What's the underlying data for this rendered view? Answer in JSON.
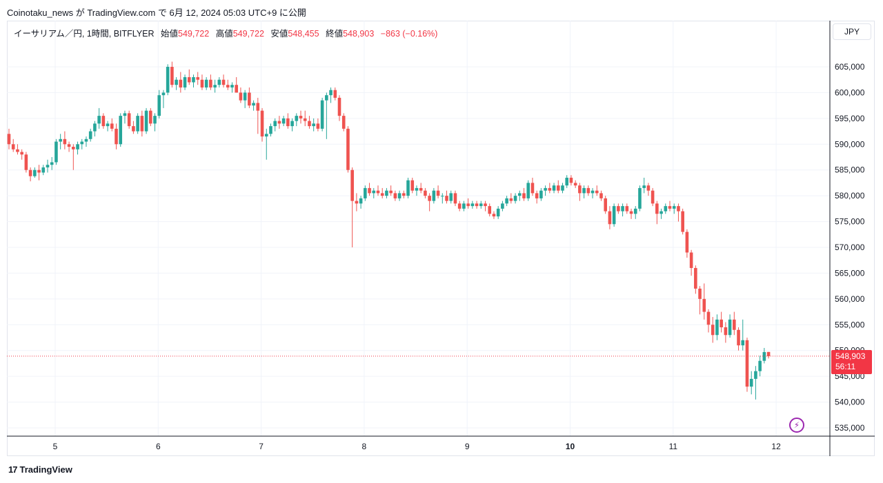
{
  "header": {
    "publish_line": "Coinotaku_news が TradingView.com で 6月 12, 2024 05:03 UTC+9 に公開"
  },
  "legend": {
    "symbol": "イーサリアム／円, 1時間, BITFLYER",
    "open_label": "始値",
    "open_value": "549,722",
    "high_label": "高値",
    "high_value": "549,722",
    "low_label": "安値",
    "low_value": "548,455",
    "close_label": "終値",
    "close_value": "548,903",
    "change": "−863 (−0.16%)"
  },
  "currency_button": "JPY",
  "price_tag": {
    "price": "548,903",
    "countdown": "56:11"
  },
  "footer": {
    "brand": "TradingView"
  },
  "colors": {
    "up": "#26a69a",
    "down": "#ef5350",
    "grid": "#f0f3fa",
    "axis_text": "#131722"
  },
  "chart_data": {
    "type": "candlestick",
    "x_ticks": [
      "5",
      "6",
      "7",
      "8",
      "9",
      "10",
      "11",
      "12"
    ],
    "y_ticks": [
      "605,000",
      "600,000",
      "595,000",
      "590,000",
      "585,000",
      "580,000",
      "575,000",
      "570,000",
      "565,000",
      "560,000",
      "555,000",
      "550,000",
      "545,000",
      "540,000",
      "535,000"
    ],
    "ylim": [
      533000,
      609000
    ],
    "last_price": 548903,
    "x_start_day": 4.62,
    "bars_per_day": 24,
    "candles": [
      [
        592000,
        593000,
        589000,
        590000
      ],
      [
        590000,
        591000,
        588500,
        589000
      ],
      [
        589000,
        590000,
        588000,
        588500
      ],
      [
        588500,
        589000,
        587000,
        588000
      ],
      [
        588000,
        588500,
        584500,
        585000
      ],
      [
        585000,
        585500,
        582800,
        583800
      ],
      [
        583800,
        585500,
        583500,
        585000
      ],
      [
        585000,
        586000,
        583000,
        584500
      ],
      [
        584500,
        586000,
        584000,
        585500
      ],
      [
        585500,
        587000,
        584500,
        586000
      ],
      [
        586000,
        587500,
        585000,
        586500
      ],
      [
        586500,
        591000,
        586000,
        590500
      ],
      [
        590500,
        592000,
        589000,
        591000
      ],
      [
        591000,
        592500,
        589000,
        590000
      ],
      [
        590000,
        590500,
        588500,
        589500
      ],
      [
        589500,
        590000,
        585000,
        589000
      ],
      [
        589000,
        590500,
        588000,
        590000
      ],
      [
        590000,
        591000,
        589000,
        590500
      ],
      [
        590500,
        591500,
        589500,
        591000
      ],
      [
        591000,
        593000,
        590500,
        592500
      ],
      [
        592500,
        594500,
        591500,
        594000
      ],
      [
        594000,
        597000,
        593000,
        595500
      ],
      [
        595500,
        596000,
        593000,
        593500
      ],
      [
        593500,
        594500,
        592500,
        594000
      ],
      [
        594000,
        595000,
        592500,
        593000
      ],
      [
        593000,
        594000,
        589000,
        590000
      ],
      [
        590000,
        596000,
        589500,
        595500
      ],
      [
        595500,
        596500,
        594000,
        596000
      ],
      [
        596000,
        596500,
        593000,
        593500
      ],
      [
        593500,
        594500,
        592000,
        592500
      ],
      [
        592500,
        596000,
        592000,
        595500
      ],
      [
        595500,
        596500,
        591500,
        592500
      ],
      [
        592500,
        597000,
        592000,
        596500
      ],
      [
        596500,
        597000,
        593500,
        594000
      ],
      [
        594000,
        596000,
        592500,
        595500
      ],
      [
        595500,
        600500,
        595000,
        599500
      ],
      [
        599500,
        600500,
        597000,
        600000
      ],
      [
        600000,
        605500,
        599500,
        605000
      ],
      [
        605000,
        606000,
        601000,
        601500
      ],
      [
        601500,
        603000,
        600500,
        602500
      ],
      [
        602500,
        604000,
        600000,
        601000
      ],
      [
        601000,
        603500,
        600500,
        603000
      ],
      [
        603000,
        604500,
        601500,
        602000
      ],
      [
        602000,
        603500,
        601000,
        603000
      ],
      [
        603000,
        604000,
        601500,
        602500
      ],
      [
        602500,
        603500,
        600500,
        601000
      ],
      [
        601000,
        603000,
        600500,
        602500
      ],
      [
        602500,
        603500,
        600500,
        601000
      ],
      [
        601000,
        602500,
        600000,
        601500
      ],
      [
        601500,
        603000,
        601000,
        602500
      ],
      [
        602500,
        603500,
        601000,
        601500
      ],
      [
        601500,
        602500,
        600500,
        601000
      ],
      [
        601000,
        602000,
        600000,
        601500
      ],
      [
        601500,
        603000,
        600000,
        600000
      ],
      [
        600000,
        601000,
        598000,
        598500
      ],
      [
        598500,
        600500,
        597000,
        600000
      ],
      [
        600000,
        601000,
        597000,
        597500
      ],
      [
        597500,
        598500,
        596500,
        598000
      ],
      [
        598000,
        599000,
        592000,
        596500
      ],
      [
        596500,
        597000,
        590500,
        591500
      ],
      [
        591500,
        593000,
        587000,
        592000
      ],
      [
        592000,
        594000,
        591500,
        593500
      ],
      [
        593500,
        595000,
        592500,
        594500
      ],
      [
        594500,
        595500,
        593000,
        594000
      ],
      [
        594000,
        595500,
        593500,
        595000
      ],
      [
        595000,
        596000,
        593000,
        593500
      ],
      [
        593500,
        595000,
        592500,
        594500
      ],
      [
        594500,
        596000,
        593500,
        595500
      ],
      [
        595500,
        596500,
        594000,
        595000
      ],
      [
        595000,
        596500,
        593500,
        594500
      ],
      [
        594500,
        595500,
        593000,
        593500
      ],
      [
        593500,
        595000,
        592500,
        594000
      ],
      [
        594000,
        595000,
        592500,
        593000
      ],
      [
        593000,
        599000,
        592500,
        598500
      ],
      [
        598500,
        600000,
        591000,
        599500
      ],
      [
        599500,
        601000,
        598000,
        600500
      ],
      [
        600500,
        601000,
        598500,
        599000
      ],
      [
        599000,
        599500,
        594500,
        595500
      ],
      [
        595500,
        596000,
        592500,
        593000
      ],
      [
        593000,
        593500,
        584500,
        585000
      ],
      [
        585000,
        585500,
        570000,
        579000
      ],
      [
        579000,
        580500,
        577000,
        578500
      ],
      [
        578500,
        580000,
        577500,
        579500
      ],
      [
        579500,
        582000,
        579000,
        581500
      ],
      [
        581500,
        582500,
        580000,
        580500
      ],
      [
        580500,
        581500,
        579500,
        581000
      ],
      [
        581000,
        582000,
        580000,
        580500
      ],
      [
        580500,
        581500,
        579500,
        580000
      ],
      [
        580000,
        581500,
        579500,
        581000
      ],
      [
        581000,
        582000,
        580000,
        580500
      ],
      [
        580500,
        581000,
        579000,
        579500
      ],
      [
        579500,
        581000,
        579000,
        580500
      ],
      [
        580500,
        581000,
        579500,
        580000
      ],
      [
        580000,
        583500,
        579500,
        583000
      ],
      [
        583000,
        583500,
        580500,
        581000
      ],
      [
        581000,
        582000,
        580000,
        581500
      ],
      [
        581500,
        582500,
        580500,
        581000
      ],
      [
        581000,
        581500,
        579500,
        580000
      ],
      [
        580000,
        580500,
        577000,
        579000
      ],
      [
        579000,
        581500,
        578500,
        581000
      ],
      [
        581000,
        582000,
        579500,
        580000
      ],
      [
        580000,
        580500,
        578500,
        580000
      ],
      [
        580000,
        581000,
        578500,
        579000
      ],
      [
        579000,
        581000,
        578500,
        580500
      ],
      [
        580500,
        581000,
        578000,
        578500
      ],
      [
        578500,
        579000,
        577000,
        577500
      ],
      [
        577500,
        579000,
        577000,
        578500
      ],
      [
        578500,
        579500,
        577500,
        578000
      ],
      [
        578000,
        579000,
        577500,
        578500
      ],
      [
        578500,
        579000,
        577500,
        578000
      ],
      [
        578000,
        579000,
        577500,
        578500
      ],
      [
        578500,
        579000,
        577000,
        578000
      ],
      [
        578000,
        578500,
        576000,
        576500
      ],
      [
        576500,
        577000,
        575500,
        576000
      ],
      [
        576000,
        578000,
        575500,
        577500
      ],
      [
        577500,
        579000,
        577000,
        578500
      ],
      [
        578500,
        580000,
        578000,
        579500
      ],
      [
        579500,
        580500,
        578500,
        579000
      ],
      [
        579000,
        580500,
        578500,
        580000
      ],
      [
        580000,
        581000,
        579000,
        580500
      ],
      [
        580500,
        581500,
        579000,
        579500
      ],
      [
        579500,
        583000,
        579000,
        582500
      ],
      [
        582500,
        583500,
        580000,
        580500
      ],
      [
        580500,
        581000,
        578500,
        579500
      ],
      [
        579500,
        581500,
        579000,
        581000
      ],
      [
        581000,
        582000,
        580000,
        581500
      ],
      [
        581500,
        582500,
        580500,
        581000
      ],
      [
        581000,
        582500,
        580500,
        582000
      ],
      [
        582000,
        583000,
        580500,
        581000
      ],
      [
        581000,
        582500,
        580500,
        582000
      ],
      [
        582000,
        584000,
        581500,
        583500
      ],
      [
        583500,
        584000,
        582000,
        582500
      ],
      [
        582500,
        583000,
        581500,
        582000
      ],
      [
        582000,
        582500,
        579000,
        580500
      ],
      [
        580500,
        582000,
        579500,
        581500
      ],
      [
        581500,
        582000,
        580000,
        580500
      ],
      [
        580500,
        581500,
        579500,
        581000
      ],
      [
        581000,
        582000,
        580000,
        580500
      ],
      [
        580500,
        581000,
        579000,
        579500
      ],
      [
        579500,
        580000,
        576500,
        577000
      ],
      [
        577000,
        578000,
        573500,
        574500
      ],
      [
        574500,
        578500,
        574000,
        578000
      ],
      [
        578000,
        578500,
        576500,
        577000
      ],
      [
        577000,
        578500,
        576000,
        578000
      ],
      [
        578000,
        578500,
        576500,
        577000
      ],
      [
        577000,
        577500,
        575500,
        576500
      ],
      [
        576500,
        578000,
        575500,
        577500
      ],
      [
        577500,
        582000,
        577000,
        581500
      ],
      [
        581500,
        583500,
        580500,
        582000
      ],
      [
        582000,
        582500,
        580000,
        581000
      ],
      [
        581000,
        581500,
        578000,
        578500
      ],
      [
        578500,
        579000,
        574500,
        576500
      ],
      [
        576500,
        577500,
        575500,
        577000
      ],
      [
        577000,
        578500,
        576500,
        578000
      ],
      [
        578000,
        579000,
        577000,
        577500
      ],
      [
        577500,
        578500,
        576500,
        578000
      ],
      [
        578000,
        578500,
        575000,
        577000
      ],
      [
        577000,
        577500,
        572500,
        573000
      ],
      [
        573000,
        573500,
        568000,
        569000
      ],
      [
        569000,
        569500,
        564500,
        566000
      ],
      [
        566000,
        566500,
        561000,
        562000
      ],
      [
        562000,
        562500,
        557000,
        560000
      ],
      [
        560000,
        563000,
        556000,
        557500
      ],
      [
        557500,
        558000,
        553500,
        555000
      ],
      [
        555000,
        556500,
        551500,
        553000
      ],
      [
        553000,
        557000,
        552000,
        556000
      ],
      [
        556000,
        557500,
        553500,
        554500
      ],
      [
        554500,
        555500,
        551500,
        553000
      ],
      [
        553000,
        557000,
        552500,
        556000
      ],
      [
        556000,
        557500,
        553000,
        554000
      ],
      [
        554000,
        554500,
        550000,
        551000
      ],
      [
        551000,
        556000,
        550000,
        552000
      ],
      [
        552000,
        552500,
        542000,
        543000
      ],
      [
        543000,
        546000,
        541500,
        544500
      ],
      [
        544500,
        547000,
        540500,
        546000
      ],
      [
        546000,
        549000,
        545000,
        548000
      ],
      [
        548000,
        550500,
        547500,
        549700
      ],
      [
        549722,
        549722,
        548455,
        548903
      ]
    ]
  }
}
